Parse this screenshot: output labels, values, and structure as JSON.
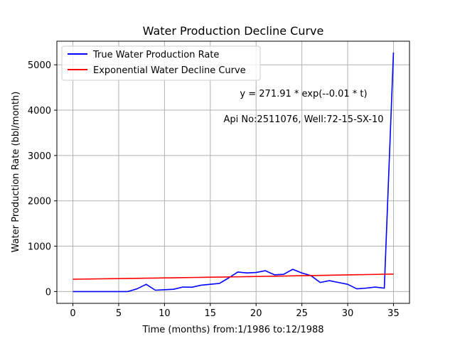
{
  "chart_data": {
    "type": "line",
    "title": "Water Production Decline Curve",
    "xlabel": "Time (months) from:1/1986 to:12/1988",
    "ylabel": "Water Production Rate (bbl/month)",
    "xlim": [
      -1.75,
      36.75
    ],
    "ylim": [
      -260,
      5520
    ],
    "xticks": [
      0,
      5,
      10,
      15,
      20,
      25,
      30,
      35
    ],
    "yticks": [
      0,
      1000,
      2000,
      3000,
      4000,
      5000
    ],
    "grid": true,
    "legend_position": "top-left",
    "annotations": [
      "y = 271.91 * exp(--0.01 * t)",
      "Api No:2511076, Well:72-15-SX-10"
    ],
    "series": [
      {
        "name": "True Water Production Rate",
        "color": "#0000ff",
        "x": [
          0,
          1,
          2,
          3,
          4,
          5,
          6,
          7,
          8,
          9,
          10,
          11,
          12,
          13,
          14,
          15,
          16,
          17,
          18,
          19,
          20,
          21,
          22,
          23,
          24,
          25,
          26,
          27,
          28,
          29,
          30,
          31,
          32,
          33,
          34,
          35
        ],
        "values": [
          0,
          0,
          0,
          0,
          0,
          0,
          0,
          60,
          160,
          30,
          40,
          50,
          100,
          95,
          140,
          160,
          180,
          300,
          430,
          410,
          420,
          460,
          370,
          380,
          490,
          410,
          350,
          200,
          240,
          200,
          160,
          60,
          75,
          100,
          75,
          5270
        ]
      },
      {
        "name": "Exponential Water Decline Curve",
        "color": "#ff0000",
        "x": [
          0,
          1,
          2,
          3,
          4,
          5,
          6,
          7,
          8,
          9,
          10,
          11,
          12,
          13,
          14,
          15,
          16,
          17,
          18,
          19,
          20,
          21,
          22,
          23,
          24,
          25,
          26,
          27,
          28,
          29,
          30,
          31,
          32,
          33,
          34,
          35
        ],
        "values": [
          271.91,
          274.64,
          277.4,
          280.19,
          283.0,
          285.85,
          288.72,
          291.62,
          294.55,
          297.51,
          300.5,
          303.52,
          306.57,
          309.65,
          312.77,
          315.91,
          319.08,
          322.29,
          325.53,
          328.8,
          332.1,
          335.44,
          338.81,
          342.22,
          345.66,
          349.13,
          352.64,
          356.18,
          359.76,
          363.38,
          367.03,
          370.72,
          374.44,
          378.21,
          382.01,
          385.85
        ]
      }
    ]
  }
}
